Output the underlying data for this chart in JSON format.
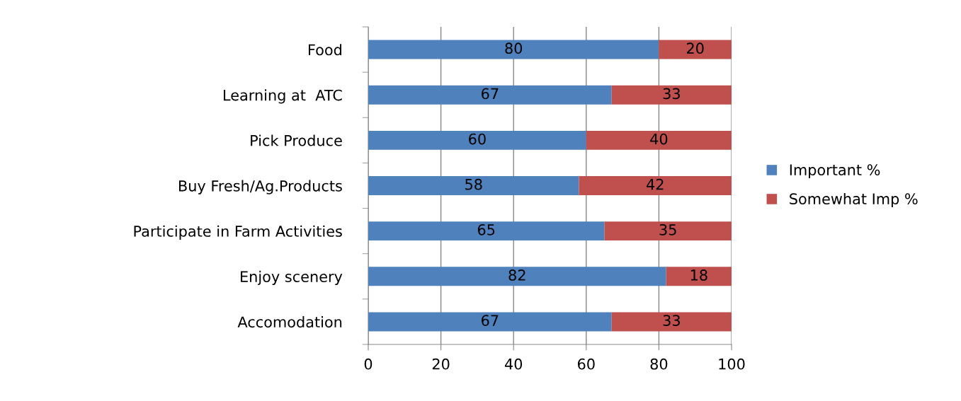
{
  "chart_data": {
    "type": "bar",
    "orientation": "horizontal",
    "stacked": true,
    "categories": [
      "Food",
      "Learning at  ATC",
      "Pick Produce",
      "Buy Fresh/Ag.Products",
      "Participate in Farm Activities",
      "Enjoy scenery",
      "Accomodation"
    ],
    "series": [
      {
        "name": "Important %",
        "color": "#4f81bd",
        "values": [
          80,
          67,
          60,
          58,
          65,
          82,
          67
        ]
      },
      {
        "name": "Somewhat Imp %",
        "color": "#c0504d",
        "values": [
          20,
          33,
          40,
          42,
          35,
          18,
          33
        ]
      }
    ],
    "xlim": [
      0,
      100
    ],
    "xticks": [
      0,
      20,
      40,
      60,
      80,
      100
    ],
    "grid": "x",
    "legend": "right",
    "data_labels": true
  }
}
